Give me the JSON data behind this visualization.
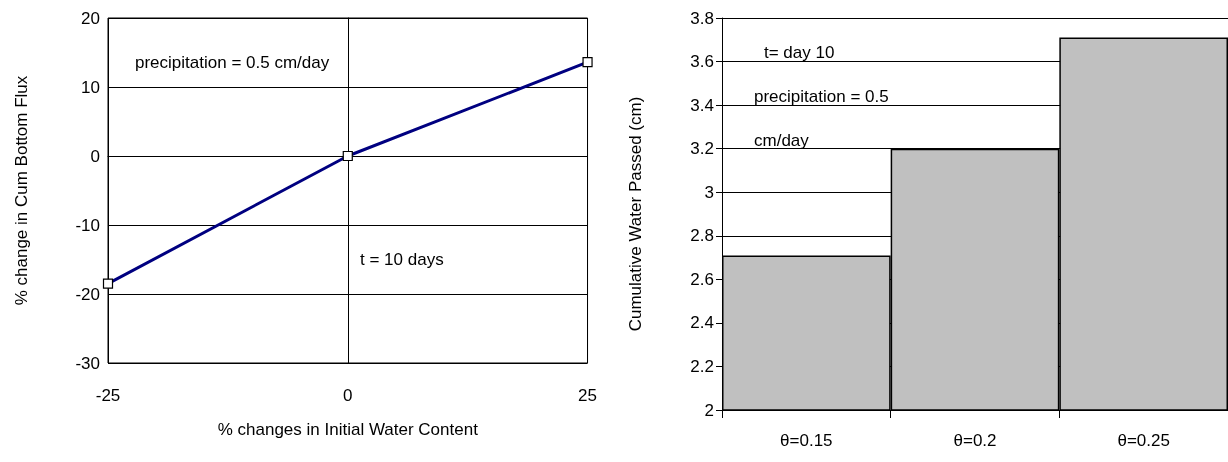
{
  "chart_data": [
    {
      "type": "line",
      "xlabel": "% changes in Initial Water Content",
      "ylabel": "% change in Cum Bottom Flux",
      "x": [
        -25,
        0,
        25
      ],
      "series": [
        {
          "color": "#000080",
          "values": [
            -18.5,
            0,
            13.6
          ]
        }
      ],
      "xlim": [
        -25,
        25
      ],
      "xticks": [
        -25,
        0,
        25
      ],
      "ylim": [
        -30,
        20
      ],
      "yticks": [
        -30,
        -20,
        -10,
        0,
        10,
        20
      ],
      "grid": true,
      "marker": "square",
      "annotations": [
        "precipitation = 0.5 cm/day",
        "t = 10 days"
      ]
    },
    {
      "type": "bar",
      "ylabel": "Cumulative Water Passed (cm)",
      "categories": [
        "θ=0.15",
        "θ=0.2",
        "θ=0.25"
      ],
      "series": [
        {
          "color": "#c0c0c0",
          "values": [
            2.71,
            3.2,
            3.71
          ]
        }
      ],
      "ylim": [
        2,
        3.8
      ],
      "yticks": [
        2,
        2.2,
        2.4,
        2.6,
        2.8,
        3,
        3.2,
        3.4,
        3.6,
        3.8
      ],
      "grid": "y",
      "annotations": [
        "t= day 10",
        "precipitation = 0.5 cm/day"
      ]
    }
  ]
}
